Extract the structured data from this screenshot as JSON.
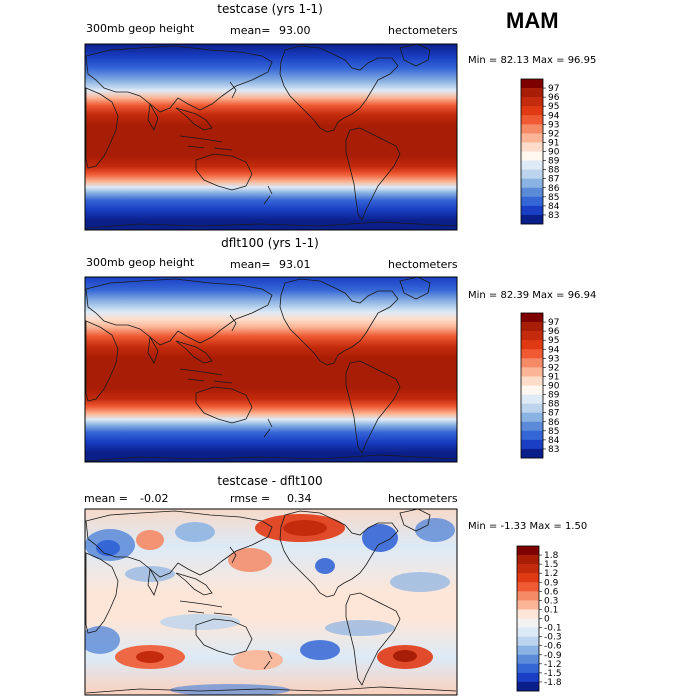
{
  "season": "MAM",
  "panels": [
    {
      "title": "testcase (yrs 1-1)",
      "field": "300mb geop height",
      "mean_label": "mean=",
      "mean_value": "93.00",
      "units": "hectometers",
      "minmax": "Min =  82.13 Max =   96.95",
      "legend": {
        "labels": [
          "97",
          "96",
          "95",
          "94",
          "93",
          "92",
          "91",
          "90",
          "89",
          "88",
          "87",
          "86",
          "85",
          "84",
          "83"
        ],
        "colors": [
          "#7f0000",
          "#a81d06",
          "#c42a0c",
          "#e03a15",
          "#ef5a33",
          "#f58a66",
          "#fbb596",
          "#fdddc9",
          "#fff7f0",
          "#deeaf6",
          "#bcd4ee",
          "#8ab2e2",
          "#5a8ad8",
          "#3566d6",
          "#1a3fc4",
          "#0b1f8a"
        ]
      }
    },
    {
      "title": "dflt100 (yrs 1-1)",
      "field": "300mb geop height",
      "mean_label": "mean=",
      "mean_value": "93.01",
      "units": "hectometers",
      "minmax": "Min =  82.39 Max =   96.94",
      "legend": {
        "labels": [
          "97",
          "96",
          "95",
          "94",
          "93",
          "92",
          "91",
          "90",
          "89",
          "88",
          "87",
          "86",
          "85",
          "84",
          "83"
        ],
        "colors": [
          "#7f0000",
          "#a81d06",
          "#c42a0c",
          "#e03a15",
          "#ef5a33",
          "#f58a66",
          "#fbb596",
          "#fdddc9",
          "#fff7f0",
          "#deeaf6",
          "#bcd4ee",
          "#8ab2e2",
          "#5a8ad8",
          "#3566d6",
          "#1a3fc4",
          "#0b1f8a"
        ]
      }
    },
    {
      "title": "testcase - dflt100",
      "mean_label": "mean =",
      "mean_value": "-0.02",
      "rmse_label": "rmse =",
      "rmse_value": "0.34",
      "units": "hectometers",
      "minmax": "Min =  -1.33 Max =   1.50",
      "legend": {
        "labels": [
          "1.8",
          "1.5",
          "1.2",
          "0.9",
          "0.6",
          "0.3",
          "0.1",
          "0",
          "-0.1",
          "-0.3",
          "-0.6",
          "-0.9",
          "-1.2",
          "-1.5",
          "-1.8"
        ],
        "colors": [
          "#7f0000",
          "#a81d06",
          "#c42a0c",
          "#e03a15",
          "#ef5a33",
          "#f58a66",
          "#fbb596",
          "#fde6d8",
          "#f2f2f2",
          "#dceaf7",
          "#bcd4ee",
          "#8ab2e2",
          "#5a8ad8",
          "#3566d6",
          "#1a3fc4",
          "#0b1f8a"
        ]
      }
    }
  ]
}
